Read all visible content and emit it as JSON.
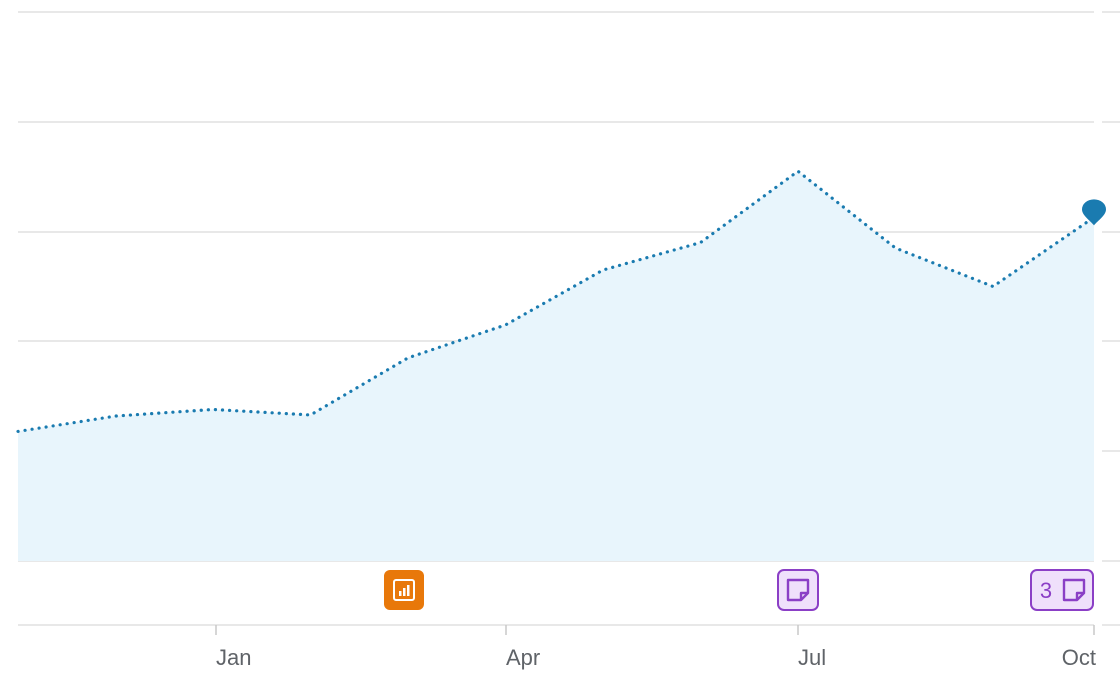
{
  "chart_data": {
    "type": "area",
    "line_style": "dotted",
    "x_ticks": [
      "Jan",
      "Apr",
      "Jul",
      "Oct"
    ],
    "points": [
      {
        "x": "Oct",
        "y": 11.8
      },
      {
        "x": "Nov",
        "y": 13.2
      },
      {
        "x": "Dec",
        "y": 13.8
      },
      {
        "x": "Jan",
        "y": 13.3
      },
      {
        "x": "Feb",
        "y": 18.5
      },
      {
        "x": "Mar",
        "y": 21.5
      },
      {
        "x": "Apr",
        "y": 26.5
      },
      {
        "x": "May",
        "y": 29.0
      },
      {
        "x": "Jun",
        "y": 35.5
      },
      {
        "x": "Jul",
        "y": 28.5
      },
      {
        "x": "Aug",
        "y": 25.0
      },
      {
        "x": "Sep",
        "y": 31.3
      }
    ],
    "ylim": [
      0,
      50
    ],
    "grid": true,
    "colors": {
      "line": "#1a7bb0",
      "area": "#e8f5fc",
      "grid": "#e0e0e0"
    },
    "annotations": [
      {
        "x": "Feb",
        "icon": "bar-chart-icon",
        "color": "#e8780a",
        "count": ""
      },
      {
        "x": "Jul",
        "icon": "note-icon",
        "color": "#8b3fc6",
        "count": ""
      },
      {
        "x": "Oct",
        "icon": "note-icon",
        "color": "#8b3fc6",
        "count": "3"
      }
    ]
  }
}
